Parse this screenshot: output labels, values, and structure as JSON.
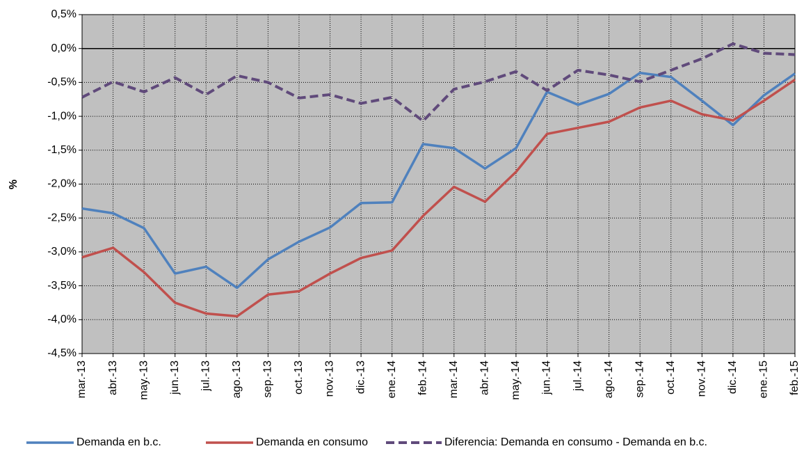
{
  "chart_data": {
    "type": "line",
    "y_label": "%",
    "categories": [
      "mar.-13",
      "abr.-13",
      "may.-13",
      "jun.-13",
      "jul.-13",
      "ago.-13",
      "sep.-13",
      "oct.-13",
      "nov.-13",
      "dic.-13",
      "ene.-14",
      "feb.-14",
      "mar.-14",
      "abr.-14",
      "may.-14",
      "jun.-14",
      "jul.-14",
      "ago.-14",
      "sep.-14",
      "oct.-14",
      "nov.-14",
      "dic.-14",
      "ene.-15",
      "feb.-15"
    ],
    "series": [
      {
        "name": "Demanda en b.c.",
        "color": "#4f81bd",
        "dashed": false,
        "values": [
          -2.36,
          -2.43,
          -2.65,
          -3.32,
          -3.22,
          -3.53,
          -3.11,
          -2.85,
          -2.64,
          -2.28,
          -2.27,
          -1.41,
          -1.47,
          -1.77,
          -1.47,
          -0.64,
          -0.83,
          -0.67,
          -0.36,
          -0.42,
          -0.77,
          -1.13,
          -0.69,
          -0.37
        ]
      },
      {
        "name": "Demanda en consumo",
        "color": "#c0504d",
        "dashed": false,
        "values": [
          -3.08,
          -2.94,
          -3.3,
          -3.75,
          -3.91,
          -3.95,
          -3.63,
          -3.58,
          -3.32,
          -3.09,
          -2.98,
          -2.47,
          -2.04,
          -2.26,
          -1.82,
          -1.26,
          -1.17,
          -1.08,
          -0.87,
          -0.77,
          -0.97,
          -1.06,
          -0.77,
          -0.46
        ]
      },
      {
        "name": "Diferencia: Demanda en consumo - Demanda en b.c.",
        "color": "#604a7b",
        "dashed": true,
        "values": [
          -0.72,
          -0.49,
          -0.64,
          -0.43,
          -0.68,
          -0.4,
          -0.5,
          -0.73,
          -0.68,
          -0.81,
          -0.72,
          -1.07,
          -0.6,
          -0.49,
          -0.34,
          -0.62,
          -0.32,
          -0.39,
          -0.49,
          -0.32,
          -0.15,
          0.07,
          -0.07,
          -0.09
        ]
      }
    ],
    "ylim": [
      -4.5,
      0.5
    ],
    "yticks": [
      {
        "value": 0.5,
        "label": "0,5%"
      },
      {
        "value": 0,
        "label": "0,0%"
      },
      {
        "value": -0.5,
        "label": "-0,5%"
      },
      {
        "value": -1,
        "label": "-1,0%"
      },
      {
        "value": -1.5,
        "label": "-1,5%"
      },
      {
        "value": -2,
        "label": "-2,0%"
      },
      {
        "value": -2.5,
        "label": "-2,5%"
      },
      {
        "value": -3,
        "label": "-3,0%"
      },
      {
        "value": -3.5,
        "label": "-3,5%"
      },
      {
        "value": -4,
        "label": "-4,0%"
      },
      {
        "value": -4.5,
        "label": "-4,5%"
      }
    ],
    "grid": true,
    "legend": "bottom",
    "background": "#c0c0c0"
  }
}
